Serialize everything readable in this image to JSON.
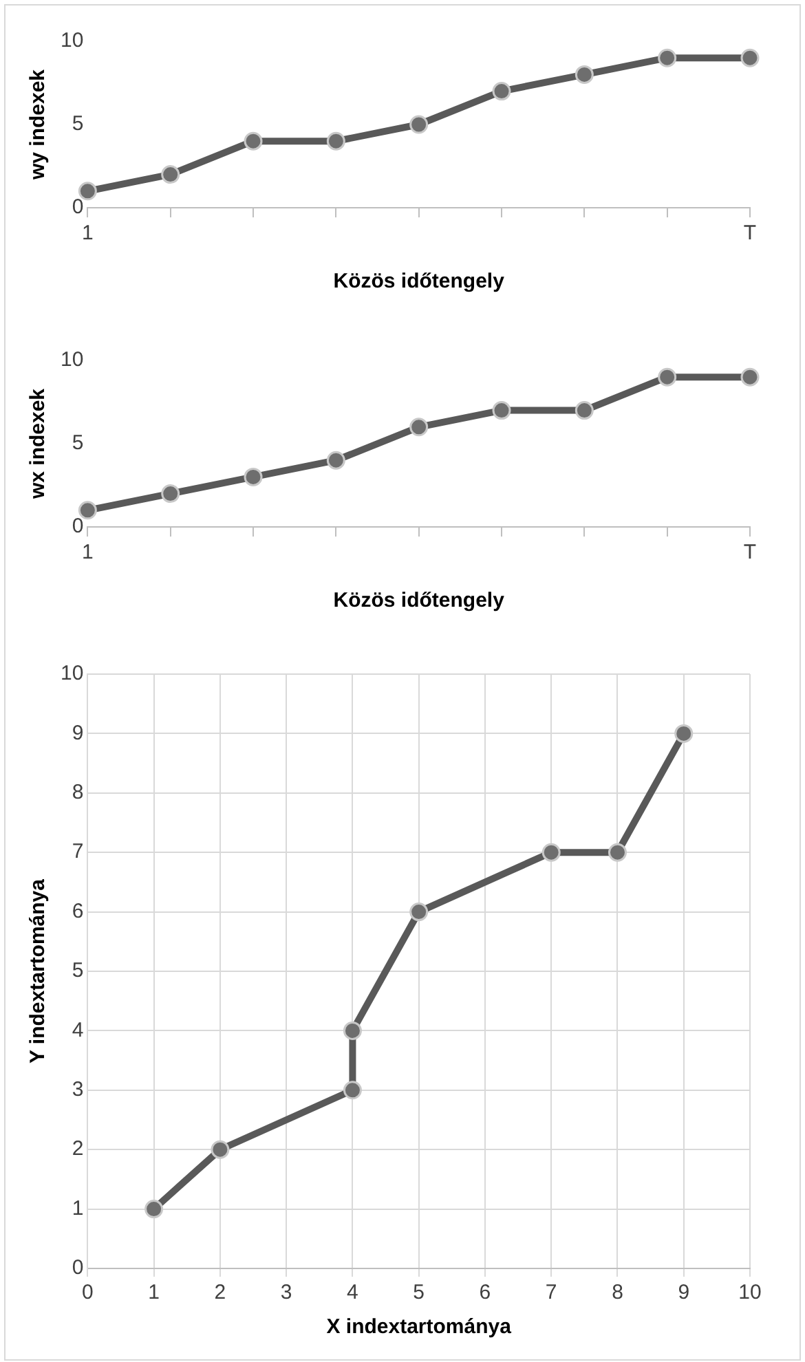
{
  "chart_data": [
    {
      "type": "line",
      "ylabel": "wy indexek",
      "xlabel": "Közös időtengely",
      "categories": [
        "1",
        null,
        null,
        null,
        null,
        null,
        null,
        null,
        "T"
      ],
      "series": [
        {
          "color": "#595959",
          "values": [
            1,
            2,
            4,
            4,
            5,
            7,
            8,
            9,
            9
          ]
        }
      ],
      "ylim": [
        0,
        10
      ],
      "yticks": [
        0,
        5,
        10
      ],
      "grid": false,
      "legend": false,
      "marker": "circle",
      "line_style": "solid"
    },
    {
      "type": "line",
      "ylabel": "wx indexek",
      "xlabel": "Közös időtengely",
      "categories": [
        "1",
        null,
        null,
        null,
        null,
        null,
        null,
        null,
        "T"
      ],
      "series": [
        {
          "color": "#595959",
          "values": [
            1,
            2,
            3,
            4,
            6,
            7,
            7,
            9,
            9
          ]
        }
      ],
      "ylim": [
        0,
        10
      ],
      "yticks": [
        0,
        5,
        10
      ],
      "grid": false,
      "legend": false,
      "marker": "circle",
      "line_style": "solid"
    },
    {
      "type": "line",
      "ylabel": "Y indextartománya",
      "xlabel": "X indextartománya",
      "x": [
        1,
        2,
        4,
        4,
        5,
        7,
        8,
        9
      ],
      "series": [
        {
          "color": "#595959",
          "values": [
            1,
            2,
            3,
            4,
            6,
            7,
            7,
            9
          ]
        }
      ],
      "xlim": [
        0,
        10
      ],
      "xticks": [
        0,
        1,
        2,
        3,
        4,
        5,
        6,
        7,
        8,
        9,
        10
      ],
      "ylim": [
        0,
        10
      ],
      "yticks": [
        0,
        1,
        2,
        3,
        4,
        5,
        6,
        7,
        8,
        9,
        10
      ],
      "grid": true,
      "legend": false,
      "marker": "circle",
      "line_style": "solid"
    }
  ]
}
